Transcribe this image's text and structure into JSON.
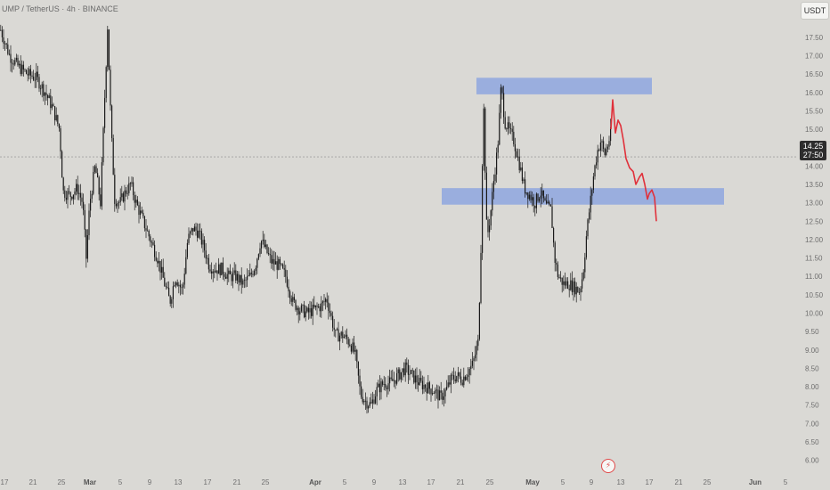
{
  "header": {
    "symbol": "UMP / TetherUS · 4h · BINANCE",
    "currency": "USDT"
  },
  "price_badge": {
    "price": "14.25",
    "countdown": "27:50"
  },
  "chart_data": {
    "type": "candlestick",
    "title": "UMP / TetherUS · 4h · BINANCE",
    "ylim": [
      5.7,
      18.2
    ],
    "y_ticks": [
      "17.50",
      "17.00",
      "16.50",
      "16.00",
      "15.50",
      "15.00",
      "14.50",
      "14.00",
      "13.50",
      "13.00",
      "12.50",
      "12.00",
      "11.50",
      "11.00",
      "10.50",
      "10.00",
      "9.50",
      "9.00",
      "8.50",
      "8.00",
      "7.50",
      "7.00",
      "6.50",
      "6.00"
    ],
    "x_ticks": [
      {
        "label": "17",
        "bold": false
      },
      {
        "label": "21",
        "bold": false
      },
      {
        "label": "25",
        "bold": false
      },
      {
        "label": "Mar",
        "bold": true
      },
      {
        "label": "5",
        "bold": false
      },
      {
        "label": "9",
        "bold": false
      },
      {
        "label": "13",
        "bold": false
      },
      {
        "label": "17",
        "bold": false
      },
      {
        "label": "21",
        "bold": false
      },
      {
        "label": "25",
        "bold": false
      },
      {
        "label": "Apr",
        "bold": true
      },
      {
        "label": "5",
        "bold": false
      },
      {
        "label": "9",
        "bold": false
      },
      {
        "label": "13",
        "bold": false
      },
      {
        "label": "17",
        "bold": false
      },
      {
        "label": "21",
        "bold": false
      },
      {
        "label": "25",
        "bold": false
      },
      {
        "label": "May",
        "bold": true
      },
      {
        "label": "5",
        "bold": false
      },
      {
        "label": "9",
        "bold": false
      },
      {
        "label": "13",
        "bold": false
      },
      {
        "label": "17",
        "bold": false
      },
      {
        "label": "21",
        "bold": false
      },
      {
        "label": "25",
        "bold": false
      },
      {
        "label": "Jun",
        "bold": true
      },
      {
        "label": "5",
        "bold": false
      }
    ],
    "current_price": 14.25,
    "zones": [
      {
        "name": "resistance-zone",
        "from": 15.95,
        "to": 16.4
      },
      {
        "name": "support-zone",
        "from": 12.95,
        "to": 13.4
      }
    ],
    "price_path": [
      [
        0,
        17.7
      ],
      [
        10,
        17.0
      ],
      [
        20,
        16.7
      ],
      [
        30,
        16.5
      ],
      [
        40,
        16.4
      ],
      [
        50,
        16.0
      ],
      [
        58,
        15.6
      ],
      [
        66,
        15.0
      ],
      [
        70,
        13.3
      ],
      [
        78,
        13.2
      ],
      [
        86,
        13.4
      ],
      [
        92,
        13.0
      ],
      [
        96,
        11.5
      ],
      [
        100,
        13.0
      ],
      [
        106,
        14.0
      ],
      [
        112,
        13.0
      ],
      [
        116,
        15.4
      ],
      [
        120,
        17.8
      ],
      [
        124,
        15.0
      ],
      [
        128,
        13.1
      ],
      [
        134,
        13.0
      ],
      [
        140,
        13.3
      ],
      [
        146,
        13.5
      ],
      [
        152,
        13.0
      ],
      [
        160,
        12.5
      ],
      [
        168,
        12.0
      ],
      [
        176,
        11.5
      ],
      [
        184,
        10.8
      ],
      [
        190,
        10.3
      ],
      [
        196,
        11.0
      ],
      [
        204,
        10.6
      ],
      [
        210,
        12.0
      ],
      [
        216,
        12.3
      ],
      [
        222,
        12.2
      ],
      [
        228,
        11.8
      ],
      [
        234,
        11.3
      ],
      [
        240,
        11.2
      ],
      [
        248,
        11.2
      ],
      [
        256,
        11.0
      ],
      [
        264,
        11.0
      ],
      [
        272,
        10.8
      ],
      [
        280,
        11.0
      ],
      [
        286,
        11.3
      ],
      [
        292,
        12.0
      ],
      [
        298,
        11.7
      ],
      [
        304,
        11.4
      ],
      [
        312,
        11.3
      ],
      [
        320,
        11.0
      ],
      [
        328,
        10.3
      ],
      [
        336,
        10.1
      ],
      [
        344,
        10.0
      ],
      [
        352,
        10.1
      ],
      [
        360,
        10.2
      ],
      [
        366,
        10.4
      ],
      [
        372,
        9.8
      ],
      [
        376,
        9.4
      ],
      [
        384,
        9.4
      ],
      [
        392,
        9.2
      ],
      [
        398,
        8.9
      ],
      [
        404,
        7.8
      ],
      [
        410,
        7.6
      ],
      [
        416,
        7.5
      ],
      [
        422,
        7.9
      ],
      [
        430,
        8.1
      ],
      [
        438,
        8.1
      ],
      [
        446,
        8.3
      ],
      [
        454,
        8.5
      ],
      [
        462,
        8.3
      ],
      [
        470,
        8.1
      ],
      [
        478,
        8.0
      ],
      [
        486,
        7.9
      ],
      [
        494,
        7.7
      ],
      [
        500,
        7.9
      ],
      [
        506,
        8.2
      ],
      [
        512,
        8.3
      ],
      [
        518,
        8.2
      ],
      [
        524,
        8.4
      ],
      [
        530,
        8.6
      ],
      [
        536,
        9.2
      ],
      [
        539,
        11.5
      ],
      [
        542,
        15.9
      ],
      [
        546,
        12.0
      ],
      [
        550,
        12.7
      ],
      [
        554,
        13.7
      ],
      [
        558,
        14.5
      ],
      [
        562,
        16.2
      ],
      [
        566,
        15.2
      ],
      [
        570,
        15.0
      ],
      [
        576,
        14.7
      ],
      [
        582,
        14.1
      ],
      [
        588,
        13.4
      ],
      [
        594,
        13.2
      ],
      [
        600,
        13.0
      ],
      [
        606,
        13.3
      ],
      [
        612,
        12.9
      ],
      [
        618,
        12.8
      ],
      [
        622,
        11.5
      ],
      [
        626,
        11.0
      ],
      [
        632,
        10.8
      ],
      [
        638,
        10.8
      ],
      [
        644,
        10.7
      ],
      [
        650,
        10.6
      ],
      [
        654,
        11.1
      ],
      [
        658,
        12.2
      ],
      [
        662,
        13.0
      ],
      [
        666,
        13.8
      ],
      [
        670,
        14.4
      ],
      [
        674,
        14.7
      ],
      [
        678,
        14.3
      ],
      [
        682,
        14.6
      ],
      [
        686,
        15.0
      ]
    ],
    "projection": [
      [
        686,
        15.0
      ],
      [
        688,
        15.8
      ],
      [
        691,
        14.9
      ],
      [
        694,
        15.25
      ],
      [
        697,
        15.1
      ],
      [
        700,
        14.7
      ],
      [
        703,
        14.2
      ],
      [
        707,
        13.95
      ],
      [
        711,
        13.85
      ],
      [
        714,
        13.5
      ],
      [
        718,
        13.7
      ],
      [
        721,
        13.8
      ],
      [
        724,
        13.5
      ],
      [
        727,
        13.1
      ],
      [
        729,
        13.25
      ],
      [
        732,
        13.35
      ],
      [
        735,
        13.15
      ],
      [
        737,
        12.5
      ]
    ],
    "colors": {
      "background": "#dad9d5",
      "candle": "#1a1a1a",
      "zone": "#8ea6df",
      "projection": "#e0313b",
      "axis_text": "#6e6e6e",
      "price_line": "#8a8a8a"
    }
  }
}
